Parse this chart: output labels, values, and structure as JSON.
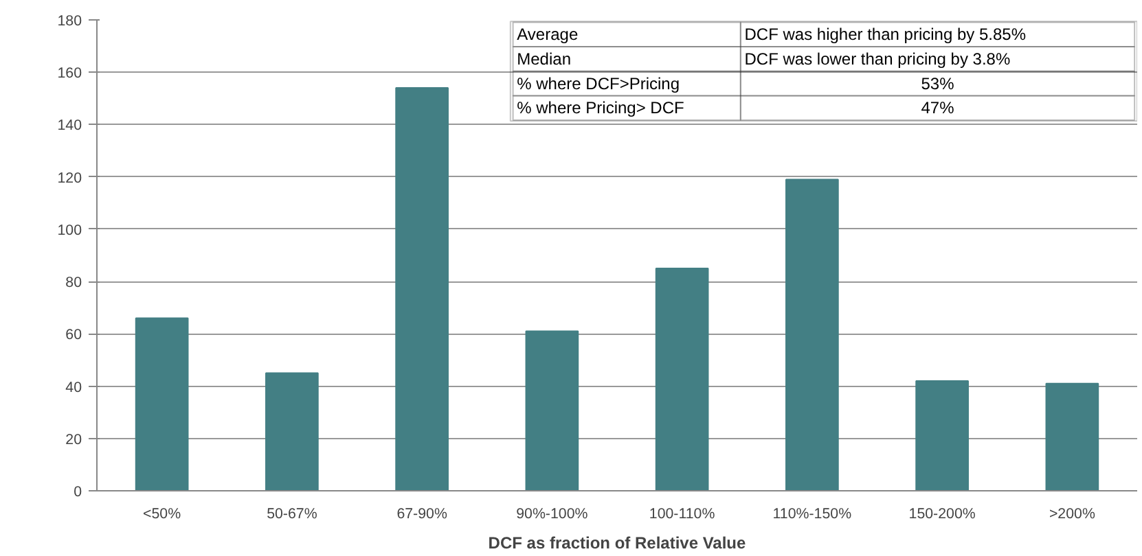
{
  "chart_data": {
    "type": "bar",
    "xlabel": "DCF as fraction of Relative Value",
    "categories": [
      "<50%",
      "50-67%",
      "67-90%",
      "90%-100%",
      "100-110%",
      "110%-150%",
      "150-200%",
      ">200%"
    ],
    "values": [
      66,
      45,
      154,
      61,
      85,
      119,
      42,
      41
    ],
    "color": "#437f84",
    "ylim": [
      0,
      180
    ],
    "yticks": [
      0,
      20,
      40,
      60,
      80,
      100,
      120,
      140,
      160,
      180
    ],
    "grid": "y",
    "annotations": [
      "Average",
      "DCF was higher than pricing by 5.85%",
      "Median",
      "DCF was lower than pricing by 3.8%",
      "% where DCF>Pricing",
      "53%",
      "% where Pricing> DCF",
      "47%"
    ]
  }
}
